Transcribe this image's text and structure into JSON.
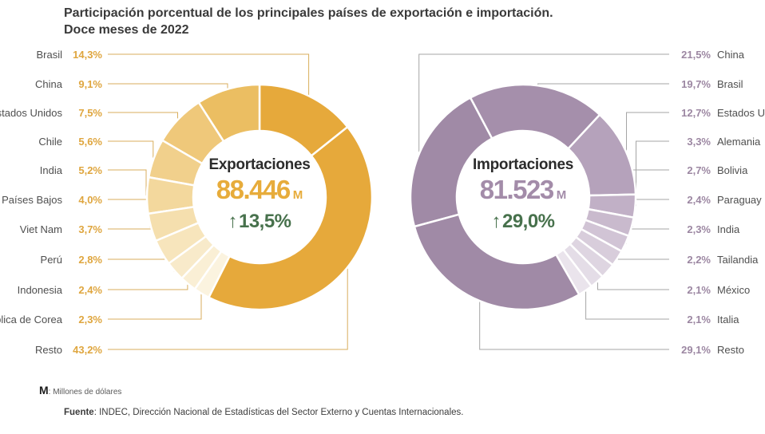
{
  "title": {
    "line1": "Participación porcentual de los principales países de exportación e importación.",
    "line2": "Doce meses de 2022"
  },
  "chart_data": [
    {
      "type": "donut",
      "name": "exportaciones",
      "legend_position": "left",
      "center": {
        "label": "Exportaciones",
        "value": "88.446",
        "unit": "M",
        "delta_arrow": "↑",
        "delta": "13,5%"
      },
      "colors": {
        "value": "#E7AC3B",
        "delta": "#47714C",
        "pct": "#DFA63F",
        "leader": "#D8AE5C"
      },
      "slices": [
        {
          "name": "Brasil",
          "pct": "14,3%",
          "value": 14.3,
          "color": "#E6A93B"
        },
        {
          "name": "China",
          "pct": "9,1%",
          "value": 9.1,
          "color": "#EBBE62"
        },
        {
          "name": "Estados Unidos",
          "pct": "7,5%",
          "value": 7.5,
          "color": "#EFC87A"
        },
        {
          "name": "Chile",
          "pct": "5,6%",
          "value": 5.6,
          "color": "#F1D08C"
        },
        {
          "name": "India",
          "pct": "5,2%",
          "value": 5.2,
          "color": "#F3D89D"
        },
        {
          "name": "Países Bajos",
          "pct": "4,0%",
          "value": 4.0,
          "color": "#F5DFAE"
        },
        {
          "name": "Viet Nam",
          "pct": "3,7%",
          "value": 3.7,
          "color": "#F7E5BC"
        },
        {
          "name": "Perú",
          "pct": "2,8%",
          "value": 2.8,
          "color": "#F8EACA"
        },
        {
          "name": "Indonesia",
          "pct": "2,4%",
          "value": 2.4,
          "color": "#FAEFD5"
        },
        {
          "name": "República de Corea",
          "pct": "2,3%",
          "value": 2.3,
          "color": "#FBF3DF"
        },
        {
          "name": "Resto",
          "pct": "43,2%",
          "value": 43.2,
          "color": "#E6A93B"
        }
      ],
      "clockwise_order": [
        0,
        10,
        9,
        8,
        7,
        6,
        5,
        4,
        3,
        2,
        1
      ],
      "start_angle": 0
    },
    {
      "type": "donut",
      "name": "importaciones",
      "legend_position": "right",
      "center": {
        "label": "Importaciones",
        "value": "81.523",
        "unit": "M",
        "delta_arrow": "↑",
        "delta": "29,0%"
      },
      "colors": {
        "value": "#A38CA9",
        "delta": "#47714C",
        "pct": "#9C87A2",
        "leader": "#A5A5A5"
      },
      "slices": [
        {
          "name": "China",
          "pct": "21,5%",
          "value": 21.5,
          "color": "#A08AA6"
        },
        {
          "name": "Brasil",
          "pct": "19,7%",
          "value": 19.7,
          "color": "#A58FAB"
        },
        {
          "name": "Estados Unidos",
          "pct": "12,7%",
          "value": 12.7,
          "color": "#B5A2BB"
        },
        {
          "name": "Alemania",
          "pct": "3,3%",
          "value": 3.3,
          "color": "#C1B0C6"
        },
        {
          "name": "Bolivia",
          "pct": "2,7%",
          "value": 2.7,
          "color": "#C9BACD"
        },
        {
          "name": "Paraguay",
          "pct": "2,4%",
          "value": 2.4,
          "color": "#D1C4D5"
        },
        {
          "name": "India",
          "pct": "2,3%",
          "value": 2.3,
          "color": "#D8CDDB"
        },
        {
          "name": "Tailandia",
          "pct": "2,2%",
          "value": 2.2,
          "color": "#DED5E1"
        },
        {
          "name": "México",
          "pct": "2,1%",
          "value": 2.1,
          "color": "#E4DDE7"
        },
        {
          "name": "Italia",
          "pct": "2,1%",
          "value": 2.1,
          "color": "#EAE4EC"
        },
        {
          "name": "Resto",
          "pct": "29,1%",
          "value": 29.1,
          "color": "#A08AA6"
        }
      ],
      "clockwise_order": [
        0,
        1,
        2,
        3,
        4,
        5,
        6,
        7,
        8,
        9,
        10
      ],
      "start_angle": -105.2
    }
  ],
  "footnotes": {
    "m_symbol": "M",
    "m_text": ": Millones de dólares",
    "source_bold": "Fuente",
    "source_rest": ": INDEC, Dirección Nacional de Estadísticas del Sector Externo y Cuentas Internacionales."
  }
}
